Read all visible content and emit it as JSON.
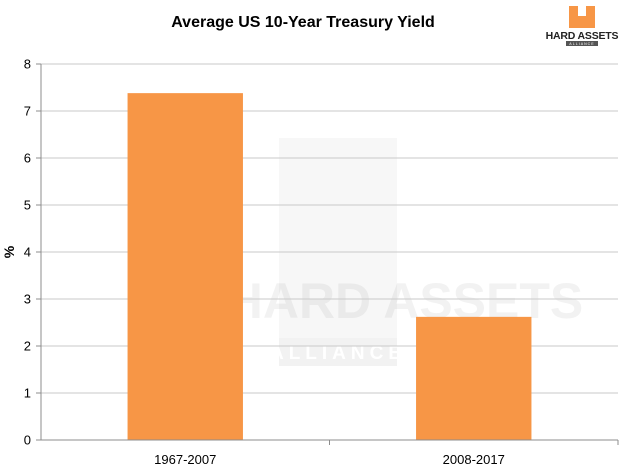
{
  "chart_data": {
    "type": "bar",
    "title": "Average US 10-Year Treasury Yield",
    "xlabel": "",
    "ylabel": "%",
    "categories": [
      "1967-2007",
      "2008-2017"
    ],
    "values": [
      7.38,
      2.62
    ],
    "ylim": [
      0,
      8
    ],
    "yticks": [
      0,
      1,
      2,
      3,
      4,
      5,
      6,
      7,
      8
    ],
    "grid": true,
    "bar_color": "#F79646"
  },
  "logo": {
    "text": "HARD ASSETS",
    "subtext": "ALLIANCE",
    "color": "#F79646"
  },
  "watermark": {
    "text": "HARD ASSETS",
    "subtext": "ALLIANCE"
  },
  "colors": {
    "grid": "#c9c9c9",
    "axis": "#8c8c8c"
  }
}
